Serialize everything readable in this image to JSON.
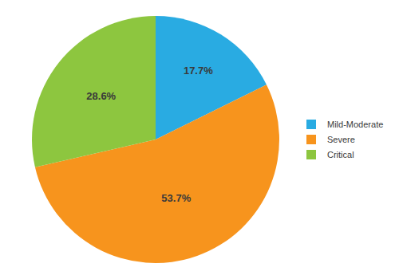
{
  "chart_data": {
    "type": "pie",
    "categories": [
      "Mild-Moderate",
      "Severe",
      "Critical"
    ],
    "values": [
      17.7,
      53.7,
      28.6
    ],
    "value_labels": [
      "17.7%",
      "53.7%",
      "28.6%"
    ],
    "colors": [
      "#29ABE2",
      "#F7941D",
      "#8DC63F"
    ],
    "data_labels": true,
    "legend": "right"
  }
}
